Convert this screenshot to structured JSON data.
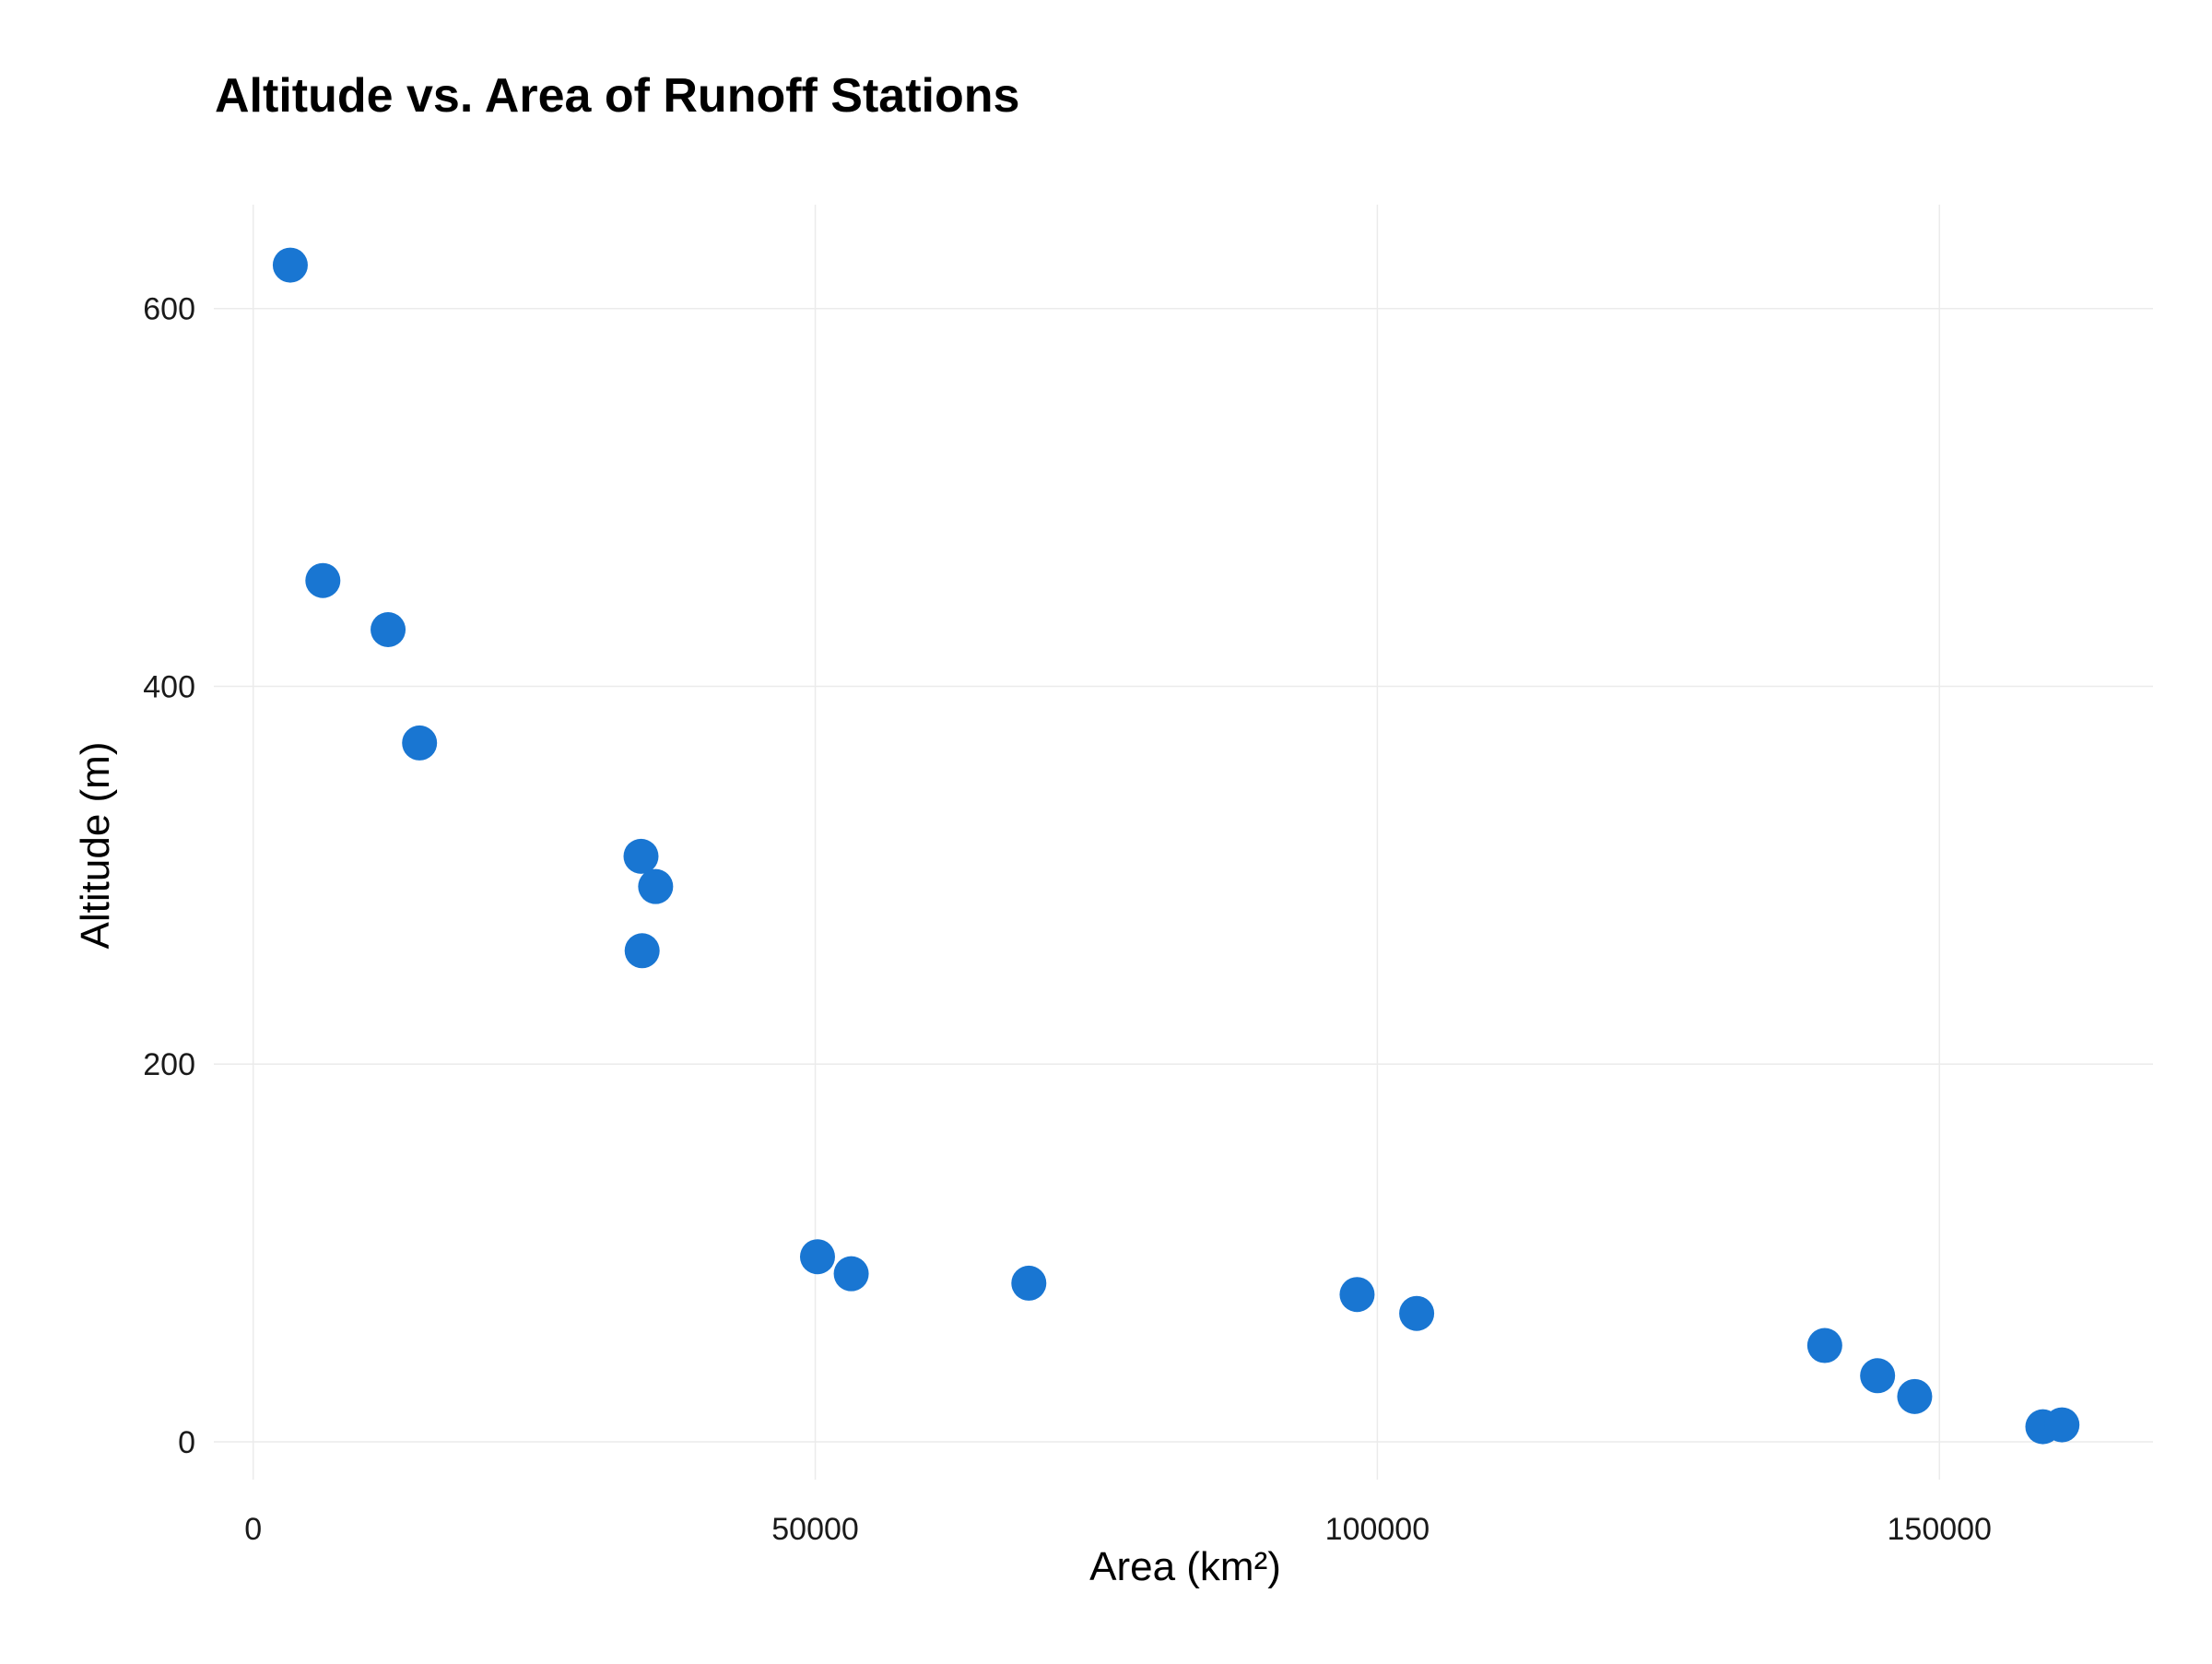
{
  "chart_data": {
    "type": "scatter",
    "title": "Altitude vs. Area of Runoff Stations",
    "xlabel": "Area (km²)",
    "ylabel": "Altitude (m)",
    "xlim": [
      -3500,
      169000
    ],
    "ylim": [
      -20,
      655
    ],
    "x_ticks": [
      0,
      50000,
      100000,
      150000
    ],
    "x_tick_labels": [
      "0",
      "50000",
      "100000",
      "150000"
    ],
    "y_ticks": [
      0,
      200,
      400,
      600
    ],
    "y_tick_labels": [
      "0",
      "200",
      "400",
      "600"
    ],
    "grid": true,
    "legend": "none",
    "point_color": "#1976D2",
    "points": [
      {
        "x": 3300,
        "y": 623
      },
      {
        "x": 6200,
        "y": 456
      },
      {
        "x": 12000,
        "y": 430
      },
      {
        "x": 14800,
        "y": 370
      },
      {
        "x": 34500,
        "y": 310
      },
      {
        "x": 35800,
        "y": 294
      },
      {
        "x": 34600,
        "y": 260
      },
      {
        "x": 50200,
        "y": 98
      },
      {
        "x": 53200,
        "y": 89
      },
      {
        "x": 69000,
        "y": 84
      },
      {
        "x": 98200,
        "y": 78
      },
      {
        "x": 103500,
        "y": 68
      },
      {
        "x": 139800,
        "y": 51
      },
      {
        "x": 144500,
        "y": 35
      },
      {
        "x": 147800,
        "y": 24
      },
      {
        "x": 159200,
        "y": 8
      },
      {
        "x": 160900,
        "y": 9
      }
    ]
  }
}
